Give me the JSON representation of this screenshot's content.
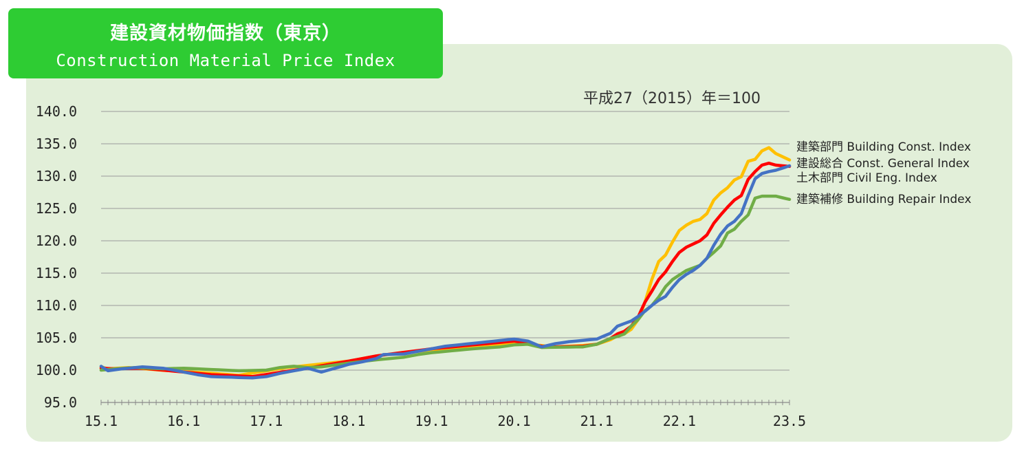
{
  "title": {
    "jp": "建設資材物価指数（東京）",
    "en": "Construction Material Price Index"
  },
  "base_note": "平成27（2015）年＝100",
  "chart_data": {
    "type": "line",
    "x_tick_labels": [
      "15.1",
      "16.1",
      "17.1",
      "18.1",
      "19.1",
      "20.1",
      "21.1",
      "22.1",
      "23.5"
    ],
    "x_tick_month_index": [
      0,
      12,
      24,
      36,
      48,
      60,
      72,
      84,
      100
    ],
    "y_tick_labels": [
      "140.0",
      "135.0",
      "130.0",
      "125.0",
      "120.0",
      "115.0",
      "110.0",
      "105.0",
      "100.0",
      "95.0"
    ],
    "ylim": [
      95,
      140
    ],
    "y_step": 5,
    "grid": true,
    "legend_position": "right, at end of lines",
    "series": [
      {
        "name": "建築部門 Building Const. Index",
        "color": "#ffc000",
        "keyframes": [
          [
            0,
            100.5
          ],
          [
            1,
            100.2
          ],
          [
            4,
            100.4
          ],
          [
            10,
            99.9
          ],
          [
            15,
            99.6
          ],
          [
            20,
            99.2
          ],
          [
            27,
            100.4
          ],
          [
            36,
            101.4
          ],
          [
            38,
            101.8
          ],
          [
            40,
            102.2
          ],
          [
            46,
            102.9
          ],
          [
            48,
            103.1
          ],
          [
            60,
            104.2
          ],
          [
            64,
            103.8
          ],
          [
            66,
            103.6
          ],
          [
            68,
            103.7
          ],
          [
            70,
            103.8
          ],
          [
            72,
            104.0
          ],
          [
            74,
            104.7
          ],
          [
            75,
            105.3
          ],
          [
            76,
            105.6
          ],
          [
            77,
            106.3
          ],
          [
            78,
            107.8
          ],
          [
            79,
            110.5
          ],
          [
            80,
            114.0
          ],
          [
            81,
            116.8
          ],
          [
            82,
            117.8
          ],
          [
            83,
            119.8
          ],
          [
            84,
            121.6
          ],
          [
            85,
            122.4
          ],
          [
            86,
            123.0
          ],
          [
            87,
            123.3
          ],
          [
            88,
            124.2
          ],
          [
            89,
            126.3
          ],
          [
            90,
            127.4
          ],
          [
            91,
            128.2
          ],
          [
            92,
            129.4
          ],
          [
            93,
            129.9
          ],
          [
            94,
            132.3
          ],
          [
            95,
            132.6
          ],
          [
            96,
            133.9
          ],
          [
            97,
            134.4
          ],
          [
            98,
            133.5
          ],
          [
            100,
            132.5
          ]
        ]
      },
      {
        "name": "建設総合 Const. General Index",
        "color": "#ff0000",
        "keyframes": [
          [
            0,
            100.3
          ],
          [
            2,
            100.2
          ],
          [
            6,
            100.3
          ],
          [
            12,
            99.7
          ],
          [
            16,
            99.3
          ],
          [
            22,
            99.0
          ],
          [
            25,
            99.5
          ],
          [
            30,
            100.3
          ],
          [
            36,
            101.4
          ],
          [
            40,
            102.2
          ],
          [
            48,
            103.3
          ],
          [
            60,
            104.5
          ],
          [
            64,
            103.7
          ],
          [
            66,
            103.6
          ],
          [
            70,
            103.7
          ],
          [
            72,
            104.0
          ],
          [
            74,
            104.9
          ],
          [
            75,
            105.6
          ],
          [
            76,
            106.0
          ],
          [
            77,
            106.8
          ],
          [
            78,
            108.2
          ],
          [
            79,
            110.5
          ],
          [
            80,
            112.2
          ],
          [
            81,
            114.0
          ],
          [
            82,
            115.2
          ],
          [
            83,
            116.8
          ],
          [
            84,
            118.2
          ],
          [
            85,
            119.0
          ],
          [
            86,
            119.5
          ],
          [
            87,
            120.0
          ],
          [
            88,
            120.9
          ],
          [
            89,
            122.7
          ],
          [
            90,
            124.0
          ],
          [
            91,
            125.2
          ],
          [
            92,
            126.3
          ],
          [
            93,
            127.0
          ],
          [
            94,
            129.5
          ],
          [
            95,
            130.7
          ],
          [
            96,
            131.7
          ],
          [
            97,
            132.0
          ],
          [
            98,
            131.7
          ],
          [
            100,
            131.5
          ]
        ]
      },
      {
        "name": "土木部門 Civil Eng. Index",
        "color": "#4472c4",
        "keyframes": [
          [
            0,
            100.6
          ],
          [
            1,
            99.9
          ],
          [
            3,
            100.2
          ],
          [
            6,
            100.5
          ],
          [
            9,
            100.3
          ],
          [
            12,
            99.7
          ],
          [
            14,
            99.3
          ],
          [
            16,
            99.0
          ],
          [
            22,
            98.8
          ],
          [
            24,
            99.0
          ],
          [
            26,
            99.5
          ],
          [
            28,
            99.9
          ],
          [
            30,
            100.3
          ],
          [
            32,
            99.7
          ],
          [
            36,
            100.9
          ],
          [
            38,
            101.3
          ],
          [
            40,
            101.8
          ],
          [
            41,
            102.4
          ],
          [
            44,
            102.5
          ],
          [
            48,
            103.3
          ],
          [
            50,
            103.7
          ],
          [
            60,
            104.8
          ],
          [
            62,
            104.5
          ],
          [
            64,
            103.6
          ],
          [
            66,
            104.1
          ],
          [
            68,
            104.4
          ],
          [
            72,
            104.8
          ],
          [
            74,
            105.7
          ],
          [
            75,
            106.8
          ],
          [
            76,
            107.2
          ],
          [
            77,
            107.6
          ],
          [
            78,
            108.3
          ],
          [
            79,
            109.1
          ],
          [
            80,
            110.0
          ],
          [
            81,
            110.8
          ],
          [
            82,
            111.4
          ],
          [
            83,
            112.8
          ],
          [
            84,
            114.0
          ],
          [
            85,
            114.8
          ],
          [
            86,
            115.4
          ],
          [
            87,
            116.2
          ],
          [
            88,
            117.3
          ],
          [
            89,
            119.3
          ],
          [
            90,
            121.0
          ],
          [
            91,
            122.3
          ],
          [
            92,
            123.0
          ],
          [
            93,
            124.2
          ],
          [
            94,
            127.0
          ],
          [
            95,
            129.6
          ],
          [
            96,
            130.4
          ],
          [
            97,
            130.7
          ],
          [
            98,
            130.9
          ],
          [
            100,
            131.6
          ]
        ]
      },
      {
        "name": "建築補修 Building Repair Index",
        "color": "#70ad47",
        "keyframes": [
          [
            0,
            100.0
          ],
          [
            2,
            100.2
          ],
          [
            5,
            100.4
          ],
          [
            9,
            100.2
          ],
          [
            12,
            100.3
          ],
          [
            14,
            100.2
          ],
          [
            18,
            100.0
          ],
          [
            20,
            99.9
          ],
          [
            24,
            100.0
          ],
          [
            26,
            100.4
          ],
          [
            28,
            100.6
          ],
          [
            30,
            100.4
          ],
          [
            32,
            100.5
          ],
          [
            36,
            101.1
          ],
          [
            40,
            101.6
          ],
          [
            44,
            102.0
          ],
          [
            46,
            102.4
          ],
          [
            48,
            102.7
          ],
          [
            54,
            103.3
          ],
          [
            58,
            103.6
          ],
          [
            60,
            103.9
          ],
          [
            62,
            104.0
          ],
          [
            64,
            103.5
          ],
          [
            70,
            103.6
          ],
          [
            72,
            104.0
          ],
          [
            74,
            104.9
          ],
          [
            75,
            105.2
          ],
          [
            76,
            105.6
          ],
          [
            77,
            106.8
          ],
          [
            78,
            107.8
          ],
          [
            79,
            109.2
          ],
          [
            80,
            110.0
          ],
          [
            81,
            111.3
          ],
          [
            82,
            112.9
          ],
          [
            83,
            114.0
          ],
          [
            84,
            114.7
          ],
          [
            85,
            115.4
          ],
          [
            86,
            115.8
          ],
          [
            87,
            116.2
          ],
          [
            88,
            117.3
          ],
          [
            89,
            118.2
          ],
          [
            90,
            119.2
          ],
          [
            91,
            121.2
          ],
          [
            92,
            121.8
          ],
          [
            93,
            123.0
          ],
          [
            94,
            124.0
          ],
          [
            95,
            126.6
          ],
          [
            96,
            126.9
          ],
          [
            98,
            126.9
          ],
          [
            100,
            126.4
          ]
        ]
      }
    ]
  }
}
